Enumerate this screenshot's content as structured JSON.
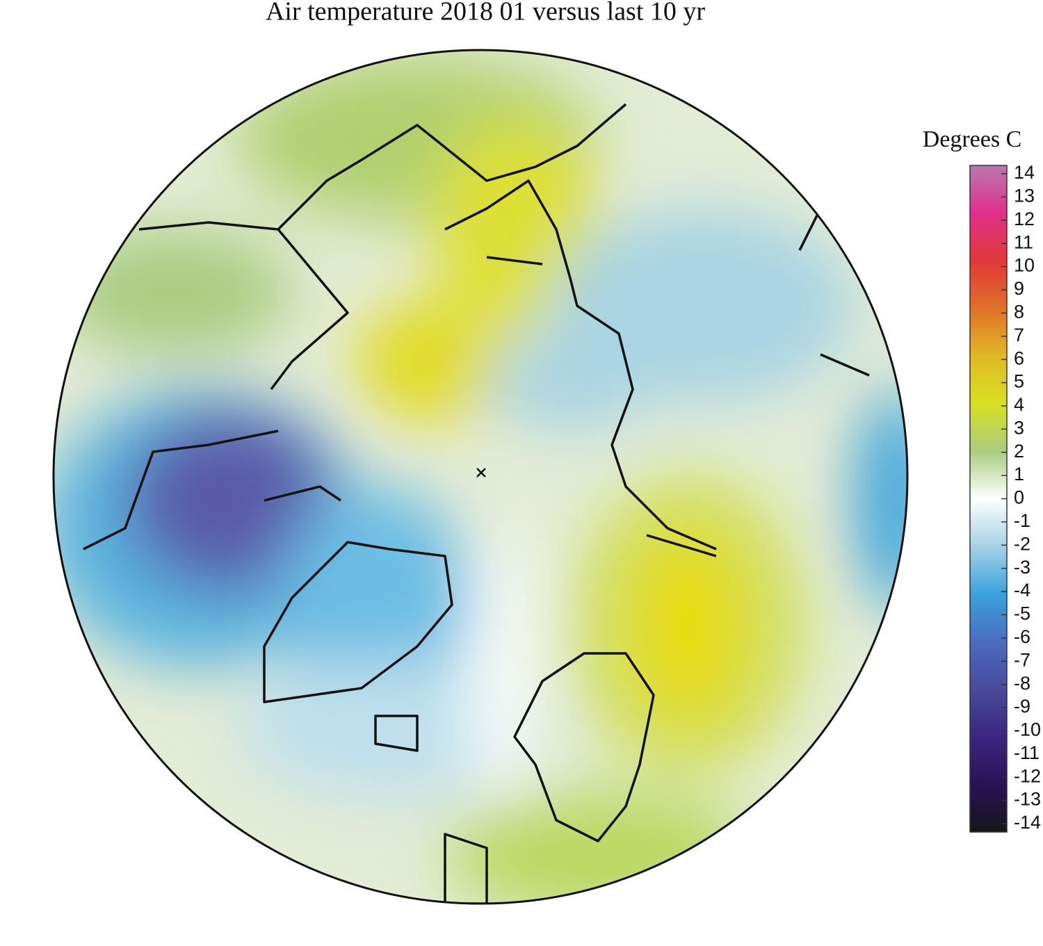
{
  "title": "Air temperature 2018 01 versus last 10 yr",
  "colorbar": {
    "label": "Degrees C",
    "lim": [
      -14,
      14
    ],
    "ticks": [
      14,
      13,
      12,
      11,
      10,
      9,
      8,
      7,
      6,
      5,
      4,
      3,
      2,
      1,
      0,
      -1,
      -2,
      -3,
      -4,
      -5,
      -6,
      -7,
      -8,
      -9,
      -10,
      -11,
      -12,
      -13,
      -14
    ],
    "colors": [
      "#161616",
      "#2a1258",
      "#3a2680",
      "#4a4a9c",
      "#4a6cc0",
      "#3aa2dc",
      "#a6d2e6",
      "#ffffff",
      "#aacc80",
      "#d8e020",
      "#e0b828",
      "#e07028",
      "#e03838",
      "#e0308a",
      "#b878b0"
    ]
  }
}
